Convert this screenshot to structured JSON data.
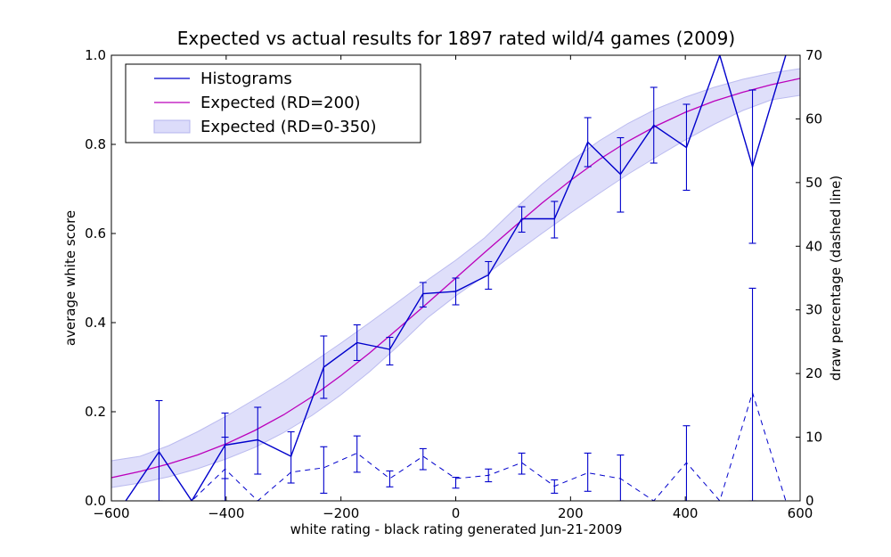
{
  "chart_data": {
    "type": "line",
    "title": "Expected vs actual results for 1897 rated wild/4 games (2009)",
    "xlabel": "white rating - black rating     generated Jun-21-2009",
    "ylabel_left": "average white score",
    "ylabel_right": "draw percentage (dashed line)",
    "xlim": [
      -600,
      600
    ],
    "ylim_left": [
      0,
      1.0
    ],
    "ylim_right": [
      0,
      70
    ],
    "x_ticks": [
      -600,
      -400,
      -200,
      0,
      200,
      400,
      600
    ],
    "x_tick_labels": [
      "−600",
      "−400",
      "−200",
      "0",
      "200",
      "400",
      "600"
    ],
    "y_left_ticks": [
      0,
      0.2,
      0.4,
      0.6,
      0.8,
      1.0
    ],
    "y_left_tick_labels": [
      "0.0",
      "0.2",
      "0.4",
      "0.6",
      "0.8",
      "1.0"
    ],
    "y_right_ticks": [
      0,
      10,
      20,
      30,
      40,
      50,
      60,
      70
    ],
    "y_right_tick_labels": [
      "0",
      "10",
      "20",
      "30",
      "40",
      "50",
      "60",
      "70"
    ],
    "legend": {
      "placement": "top-left",
      "entries": [
        "Histograms",
        "Expected (RD=200)",
        "Expected (RD=0-350)"
      ]
    },
    "colors": {
      "histogram": "#0000cc",
      "expected": "#bb00bb",
      "band_fill": "#dcdcfa",
      "band_stroke": "#b4b4ee"
    },
    "series": [
      {
        "name": "Histograms",
        "x": [
          -575,
          -517,
          -460,
          -402,
          -345,
          -287,
          -230,
          -172,
          -115,
          -57,
          0,
          57,
          115,
          172,
          230,
          287,
          345,
          402,
          460,
          517,
          575
        ],
        "y": [
          0.0,
          0.11,
          0.0,
          0.125,
          0.137,
          0.1,
          0.3,
          0.355,
          0.34,
          0.465,
          0.47,
          0.507,
          0.633,
          0.633,
          0.805,
          0.733,
          0.843,
          0.793,
          1.0,
          0.75,
          1.0
        ]
      },
      {
        "name": "Draw percentage",
        "x": [
          -575,
          -517,
          -460,
          -402,
          -345,
          -287,
          -230,
          -172,
          -115,
          -57,
          0,
          57,
          115,
          172,
          230,
          287,
          345,
          402,
          460,
          517,
          575
        ],
        "y": [
          0.0,
          0.0,
          0.0,
          5.0,
          0.0,
          4.5,
          5.2,
          7.5,
          3.5,
          7.0,
          3.5,
          4.0,
          6.0,
          2.3,
          4.4,
          3.5,
          0.0,
          6.0,
          0.0,
          17.0,
          0.0
        ]
      },
      {
        "name": "Expected (RD=200)",
        "x": [
          -600,
          -550,
          -500,
          -450,
          -400,
          -350,
          -300,
          -250,
          -200,
          -150,
          -100,
          -50,
          0,
          50,
          100,
          150,
          200,
          250,
          300,
          350,
          400,
          450,
          500,
          550,
          600
        ],
        "y": [
          0.052,
          0.066,
          0.083,
          0.103,
          0.128,
          0.158,
          0.193,
          0.234,
          0.281,
          0.332,
          0.387,
          0.443,
          0.5,
          0.557,
          0.613,
          0.668,
          0.719,
          0.766,
          0.807,
          0.842,
          0.872,
          0.897,
          0.917,
          0.934,
          0.948
        ]
      },
      {
        "name": "Expected (RD=0-350)",
        "x": [
          -600,
          -550,
          -500,
          -450,
          -400,
          -350,
          -300,
          -250,
          -200,
          -150,
          -100,
          -50,
          0,
          50,
          100,
          150,
          200,
          250,
          300,
          350,
          400,
          450,
          500,
          550,
          600
        ],
        "y_low": [
          0.03,
          0.04,
          0.054,
          0.072,
          0.094,
          0.12,
          0.153,
          0.192,
          0.238,
          0.29,
          0.348,
          0.41,
          0.46,
          0.505,
          0.553,
          0.6,
          0.646,
          0.69,
          0.733,
          0.772,
          0.81,
          0.845,
          0.876,
          0.9,
          0.91
        ],
        "y_high": [
          0.09,
          0.1,
          0.124,
          0.155,
          0.19,
          0.228,
          0.267,
          0.31,
          0.354,
          0.4,
          0.447,
          0.495,
          0.54,
          0.59,
          0.652,
          0.71,
          0.762,
          0.808,
          0.847,
          0.88,
          0.906,
          0.928,
          0.946,
          0.96,
          0.97
        ]
      }
    ],
    "error_bars": {
      "x": [
        -517,
        -402,
        -345,
        -287,
        -230,
        -172,
        -115,
        -57,
        0,
        57,
        115,
        172,
        230,
        287,
        345,
        402,
        517
      ],
      "low": [
        0.0,
        0.05,
        0.06,
        0.04,
        0.23,
        0.315,
        0.305,
        0.435,
        0.44,
        0.475,
        0.603,
        0.59,
        0.75,
        0.648,
        0.758,
        0.697,
        0.578
      ],
      "high": [
        0.225,
        0.197,
        0.21,
        0.155,
        0.37,
        0.395,
        0.367,
        0.49,
        0.5,
        0.537,
        0.66,
        0.672,
        0.86,
        0.815,
        0.928,
        0.89,
        0.922
      ]
    },
    "draw_error_bars": {
      "x": [
        -402,
        -230,
        -172,
        -115,
        -57,
        0,
        57,
        115,
        172,
        230,
        287,
        402,
        517
      ],
      "low": [
        0.0,
        1.2,
        4.5,
        2.2,
        4.9,
        2.0,
        3.0,
        4.2,
        1.2,
        1.5,
        0.0,
        0.0,
        0.0
      ],
      "high": [
        10.0,
        8.5,
        10.2,
        4.7,
        8.2,
        3.7,
        5.0,
        7.5,
        3.3,
        7.5,
        7.2,
        11.8,
        33.4
      ]
    }
  }
}
